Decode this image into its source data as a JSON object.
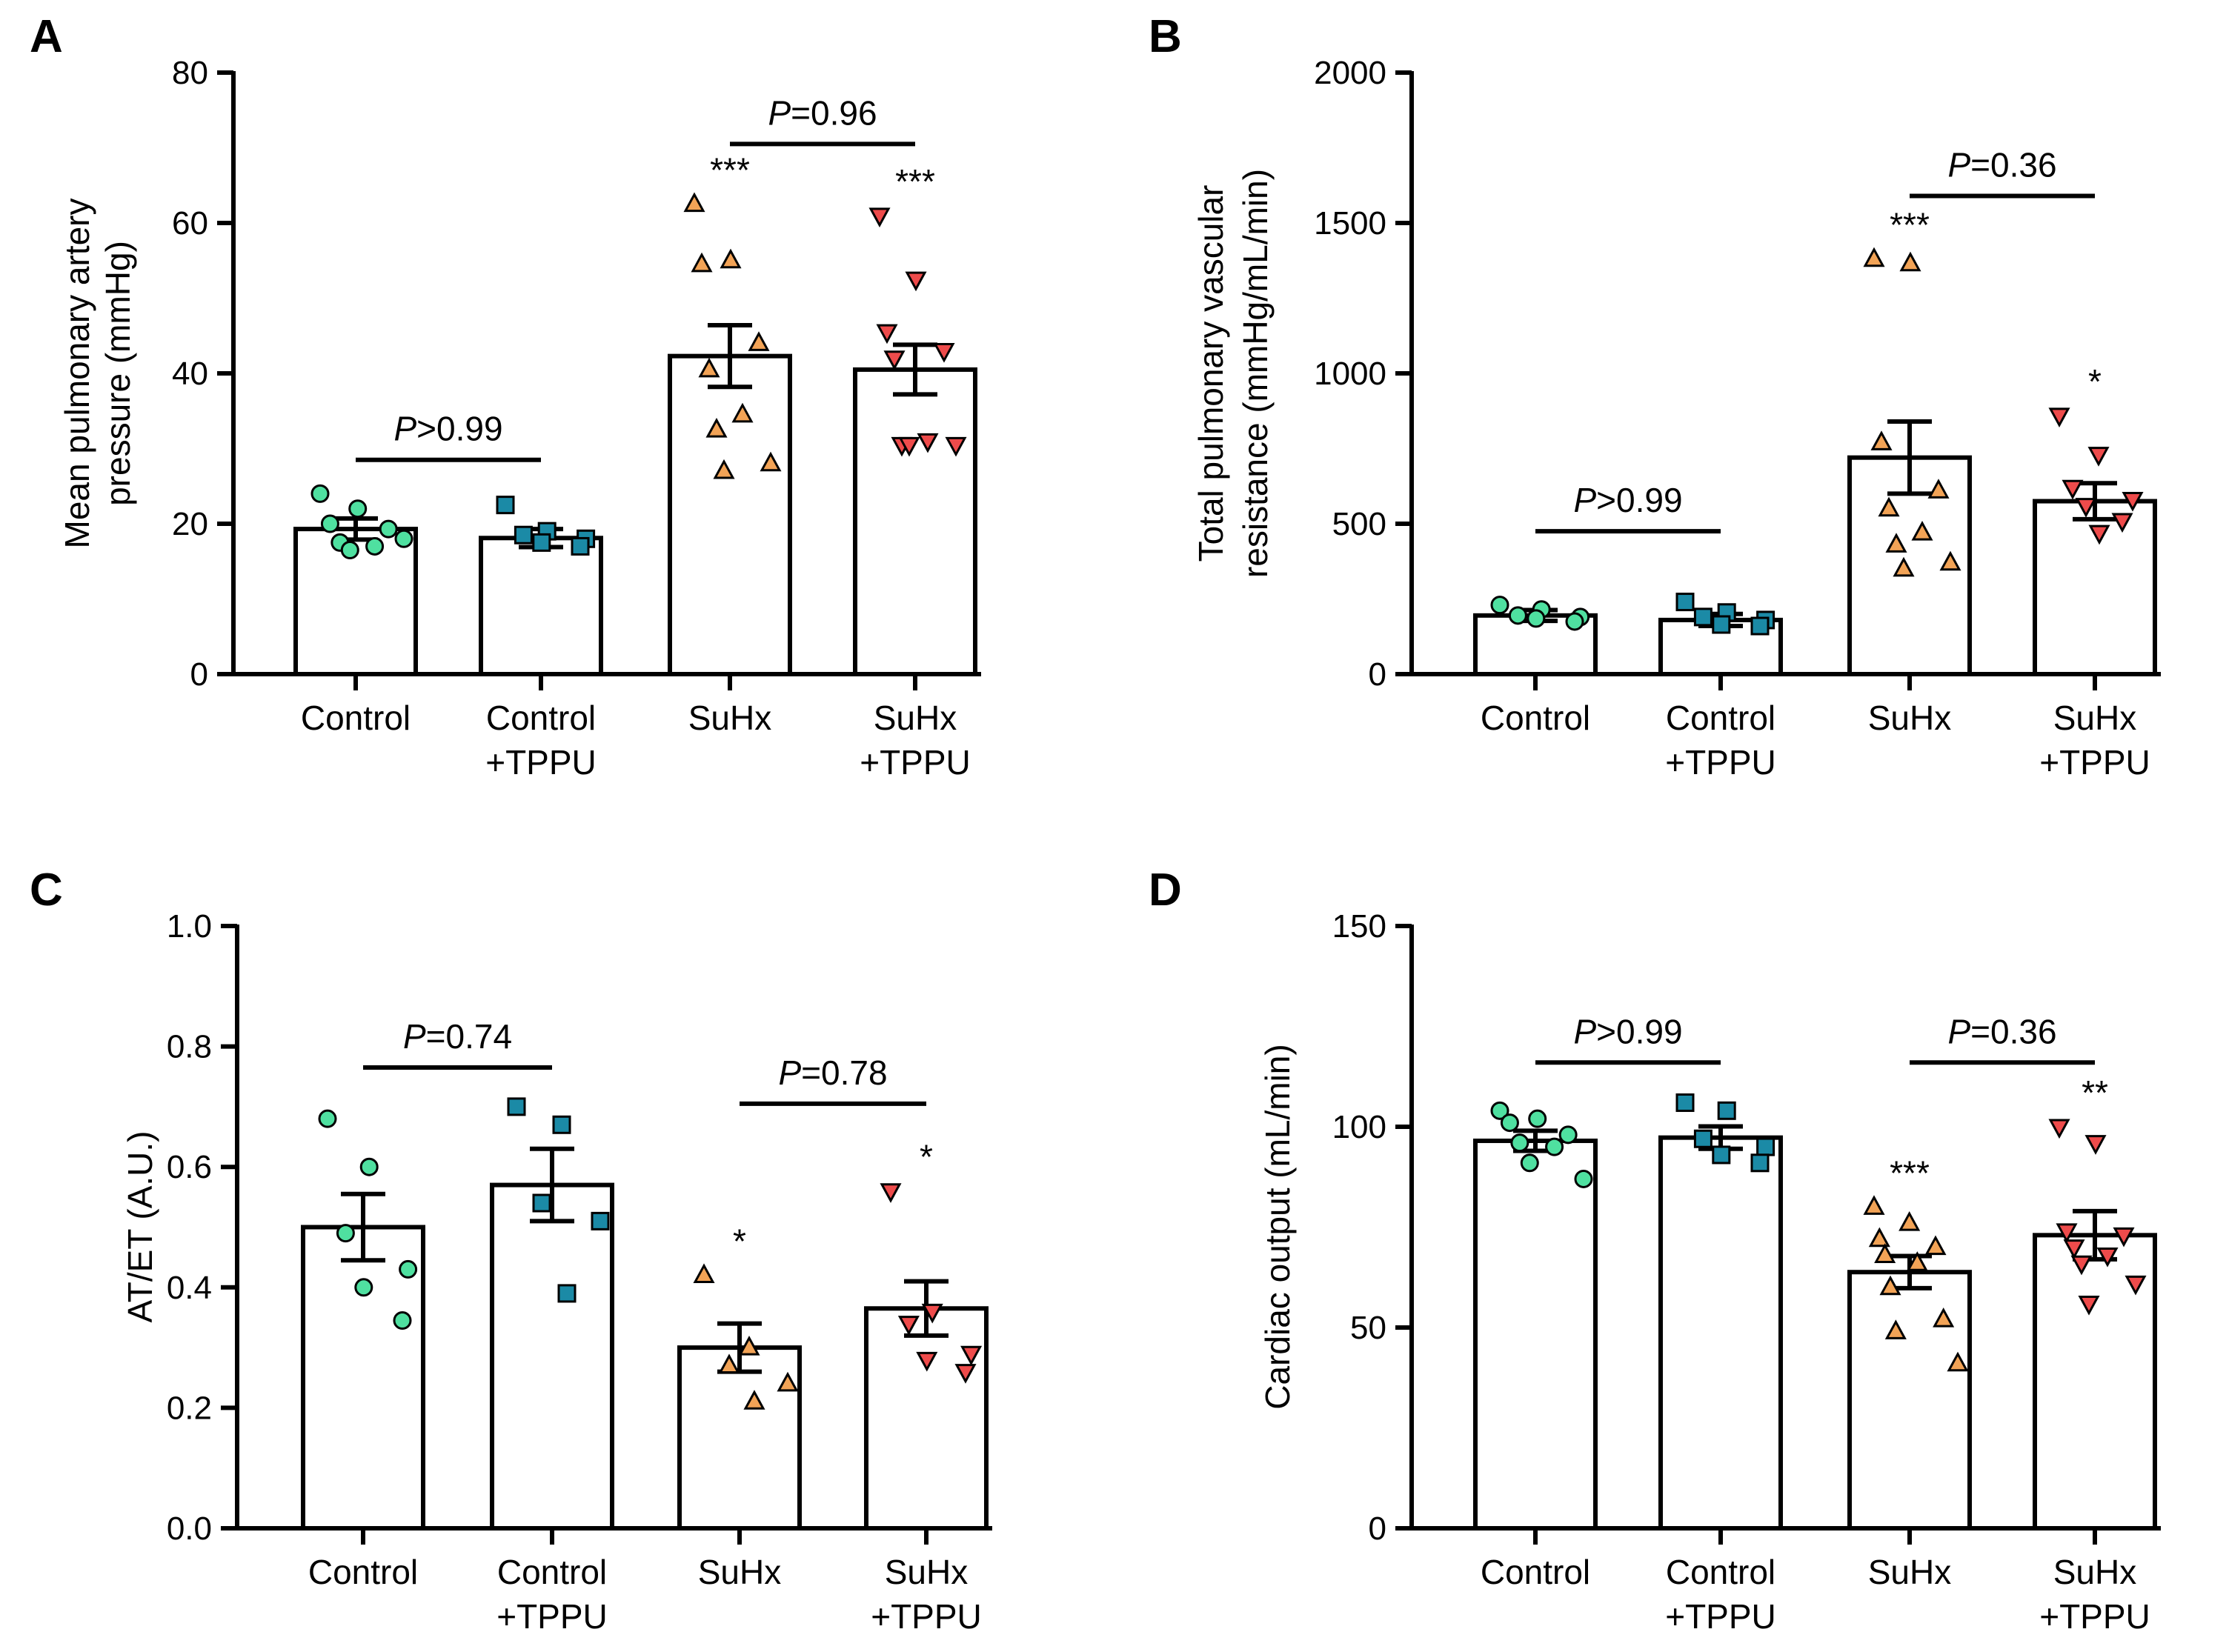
{
  "chart_data": [
    {
      "panel": "A",
      "type": "bar",
      "ylabel": [
        "Mean pulmonary artery",
        "pressure (mmHg)"
      ],
      "ylim": [
        0,
        80
      ],
      "yticks": [
        0,
        20,
        40,
        60,
        80
      ],
      "categories": [
        [
          "Control",
          ""
        ],
        [
          "Control",
          "+TPPU"
        ],
        [
          "SuHx",
          ""
        ],
        [
          "SuHx",
          "+TPPU"
        ]
      ],
      "means": [
        19.3,
        18.1,
        42.3,
        40.5
      ],
      "sem": [
        1.4,
        1.2,
        4.1,
        3.3
      ],
      "points": [
        [
          24,
          22,
          20,
          19.3,
          17.5,
          17,
          16.5,
          18
        ],
        [
          22.5,
          19,
          18.5,
          18,
          17.5,
          17
        ],
        [
          62.5,
          55,
          54.5,
          44,
          40.5,
          34.5,
          32.5,
          28,
          27
        ],
        [
          61,
          52.5,
          45.5,
          43,
          42,
          31,
          30.5,
          30.5,
          30.5
        ]
      ],
      "stars": [
        "",
        "",
        "***",
        "***"
      ],
      "comparisons": [
        {
          "groups": [
            0,
            1
          ],
          "italic": "P",
          "text": ">0.99",
          "y": 28.5
        },
        {
          "groups": [
            2,
            3
          ],
          "italic": "P",
          "text": "=0.96",
          "y": 70.5
        }
      ]
    },
    {
      "panel": "B",
      "type": "bar",
      "ylabel": [
        "Total pulmonary vascular",
        "resistance (mmHg/mL/min)"
      ],
      "ylim": [
        0,
        2000
      ],
      "yticks": [
        0,
        500,
        1000,
        1500,
        2000
      ],
      "categories": [
        [
          "Control",
          ""
        ],
        [
          "Control",
          "+TPPU"
        ],
        [
          "SuHx",
          ""
        ],
        [
          "SuHx",
          "+TPPU"
        ]
      ],
      "means": [
        195,
        180,
        720,
        575
      ],
      "sem": [
        18,
        20,
        120,
        60
      ],
      "points": [
        [
          230,
          215,
          195,
          190,
          185,
          175
        ],
        [
          240,
          205,
          190,
          180,
          165,
          160
        ],
        [
          1380,
          1365,
          770,
          610,
          550,
          470,
          430,
          370,
          350
        ],
        [
          860,
          730,
          620,
          580,
          560,
          510,
          470
        ]
      ],
      "stars": [
        "",
        "",
        "***",
        "*"
      ],
      "comparisons": [
        {
          "groups": [
            0,
            1
          ],
          "italic": "P",
          "text": ">0.99",
          "y": 475
        },
        {
          "groups": [
            2,
            3
          ],
          "italic": "P",
          "text": "=0.36",
          "y": 1590
        }
      ]
    },
    {
      "panel": "C",
      "type": "bar",
      "ylabel": [
        "AT/ET (A.U.)"
      ],
      "ylim": [
        0,
        1.0
      ],
      "yticks": [
        "0.0",
        "0.2",
        "0.4",
        "0.6",
        "0.8",
        "1.0"
      ],
      "categories": [
        [
          "Control",
          ""
        ],
        [
          "Control",
          "+TPPU"
        ],
        [
          "SuHx",
          ""
        ],
        [
          "SuHx",
          "+TPPU"
        ]
      ],
      "means": [
        0.5,
        0.57,
        0.3,
        0.365
      ],
      "sem": [
        0.055,
        0.06,
        0.04,
        0.045
      ],
      "points": [
        [
          0.68,
          0.6,
          0.49,
          0.43,
          0.4,
          0.345
        ],
        [
          0.7,
          0.67,
          0.54,
          0.51,
          0.39
        ],
        [
          0.42,
          0.3,
          0.27,
          0.24,
          0.21
        ],
        [
          0.56,
          0.36,
          0.34,
          0.29,
          0.28,
          0.26
        ]
      ],
      "stars": [
        "",
        "",
        "*",
        "*"
      ],
      "comparisons": [
        {
          "groups": [
            0,
            1
          ],
          "italic": "P",
          "text": "=0.74",
          "y": 0.765
        },
        {
          "groups": [
            2,
            3
          ],
          "italic": "P",
          "text": "=0.78",
          "y": 0.705
        }
      ]
    },
    {
      "panel": "D",
      "type": "bar",
      "ylabel": [
        "Cardiac output (mL/min)"
      ],
      "ylim": [
        0,
        150
      ],
      "yticks": [
        0,
        50,
        100,
        150
      ],
      "categories": [
        [
          "Control",
          ""
        ],
        [
          "Control",
          "+TPPU"
        ],
        [
          "SuHx",
          ""
        ],
        [
          "SuHx",
          "+TPPU"
        ]
      ],
      "means": [
        96.5,
        97.3,
        63.8,
        73
      ],
      "sem": [
        2.5,
        2.8,
        4.0,
        6.0
      ],
      "points": [
        [
          104,
          102,
          101,
          98,
          96,
          95,
          91,
          87
        ],
        [
          106,
          104,
          97,
          95,
          93,
          91
        ],
        [
          80,
          76,
          72,
          70,
          68,
          66,
          60,
          52,
          49,
          41
        ],
        [
          100,
          96,
          74,
          73,
          70,
          68,
          66,
          61,
          56
        ]
      ],
      "stars": [
        "",
        "",
        "***",
        "**"
      ],
      "comparisons": [
        {
          "groups": [
            0,
            1
          ],
          "italic": "P",
          "text": ">0.99",
          "y": 116
        },
        {
          "groups": [
            2,
            3
          ],
          "italic": "P",
          "text": "=0.36",
          "y": 116
        }
      ]
    }
  ],
  "markers": [
    {
      "shape": "circle",
      "color": "#4fe0a0"
    },
    {
      "shape": "square",
      "color": "#1b8aa6"
    },
    {
      "shape": "triangle-up",
      "color": "#f2a356"
    },
    {
      "shape": "triangle-down",
      "color": "#ee4b4b"
    }
  ]
}
